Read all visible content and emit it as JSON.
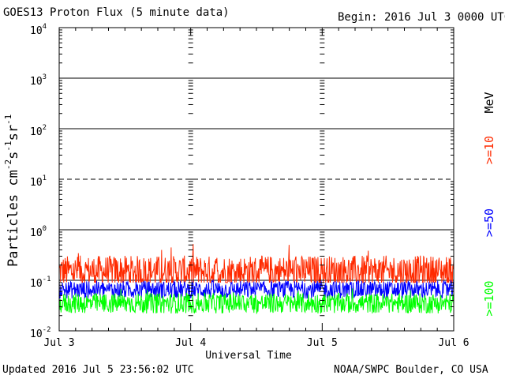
{
  "header": {
    "title": "GOES13 Proton Flux (5 minute data)",
    "begin": "Begin: 2016 Jul 3 0000 UTC"
  },
  "footer": {
    "updated": "Updated 2016 Jul  5 23:56:02 UTC",
    "credit": "NOAA/SWPC Boulder, CO USA"
  },
  "colors": {
    "ge10": "#ff2a00",
    "ge50": "#0000ff",
    "ge100": "#00ff00",
    "axis": "#000000"
  },
  "chart_data": {
    "type": "line",
    "ylabel": "Particles cm-2s-1sr-1",
    "xlabel": "Universal Time",
    "yscale": "log",
    "ylim": [
      0.01,
      10000
    ],
    "y_ticks": [
      {
        "value": 0.01,
        "base": "10",
        "exp": "-2"
      },
      {
        "value": 0.1,
        "base": "10",
        "exp": "-1"
      },
      {
        "value": 1,
        "base": "10",
        "exp": "0"
      },
      {
        "value": 10,
        "base": "10",
        "exp": "1"
      },
      {
        "value": 100,
        "base": "10",
        "exp": "2"
      },
      {
        "value": 1000,
        "base": "10",
        "exp": "3"
      },
      {
        "value": 10000,
        "base": "10",
        "exp": "4"
      }
    ],
    "threshold_line": 10,
    "x_ticks": [
      "Jul 3",
      "Jul 4",
      "Jul 5",
      "Jul 6"
    ],
    "xlim": [
      "2016-07-03",
      "2016-07-06"
    ],
    "grid": true,
    "legend": {
      "unit": "MeV",
      "entries": [
        ">=10",
        ">=50",
        ">=100"
      ],
      "position": "right"
    },
    "series": [
      {
        "name": ">=10",
        "min": 0.09,
        "max": 0.55,
        "typical": 0.15
      },
      {
        "name": ">=50",
        "min": 0.04,
        "max": 0.11,
        "typical": 0.065
      },
      {
        "name": ">=100",
        "min": 0.022,
        "max": 0.07,
        "typical": 0.035
      }
    ]
  }
}
